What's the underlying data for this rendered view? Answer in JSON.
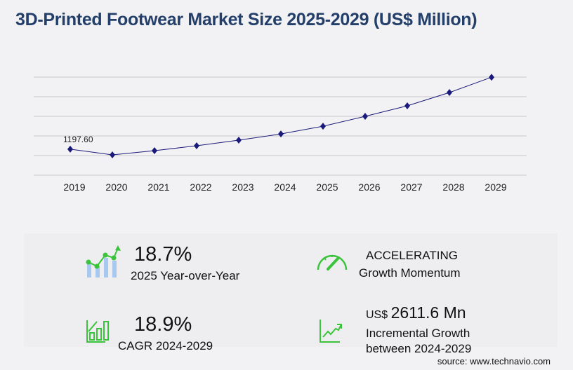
{
  "title": "3D-Printed Footwear Market Size 2025-2029 (US$ Million)",
  "chart_data": {
    "type": "line",
    "categories": [
      "2019",
      "2020",
      "2021",
      "2022",
      "2023",
      "2024",
      "2025",
      "2026",
      "2027",
      "2028",
      "2029"
    ],
    "series": [
      {
        "values": [
          1197.6,
          935,
          1128,
          1354,
          1612,
          1897,
          2252,
          2708,
          3192,
          3804,
          4508
        ]
      }
    ],
    "data_labels": {
      "2019": "1197.60"
    },
    "ylim": [
      0,
      4515
    ],
    "grid": true,
    "line_color": "#1a1a7a"
  },
  "stats": {
    "yoy_value": "18.7%",
    "yoy_label": "2025 Year-over-Year",
    "momentum_value": "ACCELERATING",
    "momentum_label": "Growth Momentum",
    "cagr_value": "18.9%",
    "cagr_label": "CAGR 2024-2029",
    "incr_prefix": "US$",
    "incr_value": "2611.6 Mn",
    "incr_label1": "Incremental Growth",
    "incr_label2": "between 2024-2029"
  },
  "source": "source: www.technavio.com",
  "colors": {
    "accent_green": "#3bc43b",
    "title": "#24406a",
    "bar_blue": "#a9c8f0"
  }
}
